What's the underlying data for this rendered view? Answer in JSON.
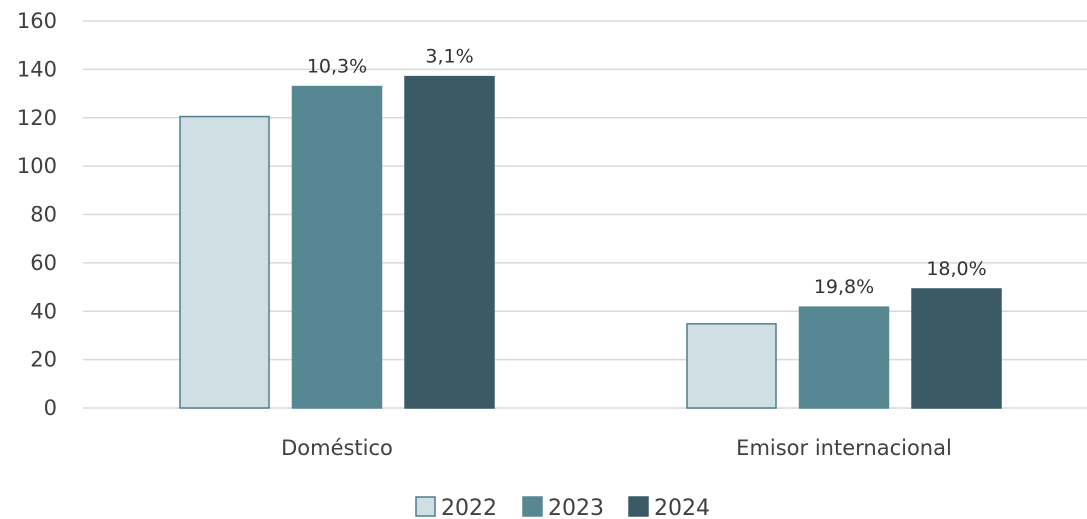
{
  "chart_data": {
    "type": "bar",
    "categories": [
      "Doméstico",
      "Emisor internacional"
    ],
    "series": [
      {
        "name": "2022",
        "values": [
          120.5,
          34.8
        ],
        "color": "#d0dfe4",
        "stroke": "#4f7f8c",
        "labels": [
          "",
          ""
        ]
      },
      {
        "name": "2023",
        "values": [
          132.9,
          41.7
        ],
        "color": "#578793",
        "stroke": "#578793",
        "labels": [
          "10,3%",
          "19,8%"
        ]
      },
      {
        "name": "2024",
        "values": [
          137.0,
          49.2
        ],
        "color": "#3a5a66",
        "stroke": "#3a5a66",
        "labels": [
          "3,1%",
          "18,0%"
        ]
      }
    ],
    "ylim": [
      0,
      160
    ],
    "yticks": [
      "0",
      "20",
      "40",
      "60",
      "80",
      "100",
      "120",
      "140",
      "160"
    ],
    "grid": true,
    "legend_position": "bottom"
  }
}
